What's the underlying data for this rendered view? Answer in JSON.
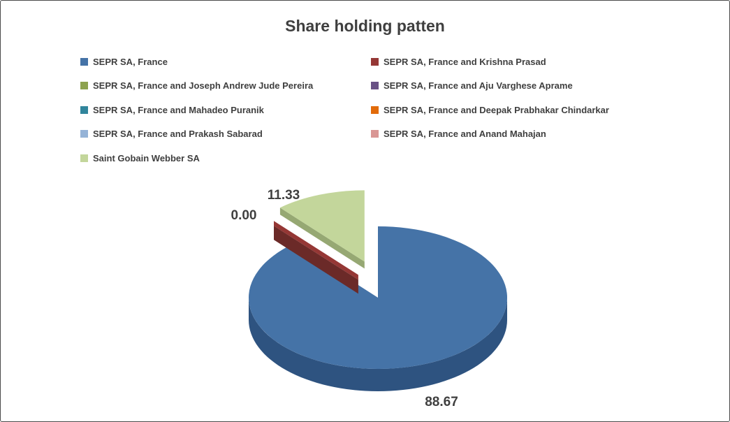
{
  "window": {
    "background": "#FFFFFF",
    "border_color": "#4A4A4A",
    "text_color": "#3F3F3F"
  },
  "chart_data": {
    "type": "pie",
    "is_3d": true,
    "title": "Share holding patten",
    "legend_position": "top",
    "legend_columns": 2,
    "total": 100,
    "series": [
      {
        "label": "SEPR SA, France",
        "value": 88.67,
        "color": "#4573A7",
        "side_color": "#2E5380",
        "data_label": "88.67",
        "exploded": false
      },
      {
        "label": "SEPR SA, France and Krishna Prasad",
        "value": 0,
        "color": "#953735",
        "side_color": "#6B2A28",
        "data_label": "0.00",
        "exploded": true
      },
      {
        "label": "SEPR SA, France and Joseph Andrew Jude Pereira",
        "value": 0,
        "color": "#8DA24F",
        "side_color": "#6E7F3C",
        "data_label": null,
        "exploded": false
      },
      {
        "label": "SEPR SA, France and Aju Varghese Aprame",
        "value": 0,
        "color": "#695185",
        "side_color": "#4E3C63",
        "data_label": null,
        "exploded": false
      },
      {
        "label": "SEPR SA, France and Mahadeo Puranik",
        "value": 0,
        "color": "#31859C",
        "side_color": "#246276",
        "data_label": null,
        "exploded": false
      },
      {
        "label": "SEPR SA, France and Deepak Prabhakar Chindarkar",
        "value": 0,
        "color": "#E26B0A",
        "side_color": "#A95008",
        "data_label": null,
        "exploded": false
      },
      {
        "label": "SEPR SA, France and Prakash Sabarad",
        "value": 0,
        "color": "#95B3D7",
        "side_color": "#7089A6",
        "data_label": null,
        "exploded": false
      },
      {
        "label": "SEPR SA, France and Anand Mahajan",
        "value": 0,
        "color": "#D99694",
        "side_color": "#A87270",
        "data_label": null,
        "exploded": false
      },
      {
        "label": "Saint Gobain Webber SA",
        "value": 11.33,
        "color": "#C3D69B",
        "side_color": "#96A873",
        "data_label": "11.33",
        "exploded": true
      }
    ]
  }
}
